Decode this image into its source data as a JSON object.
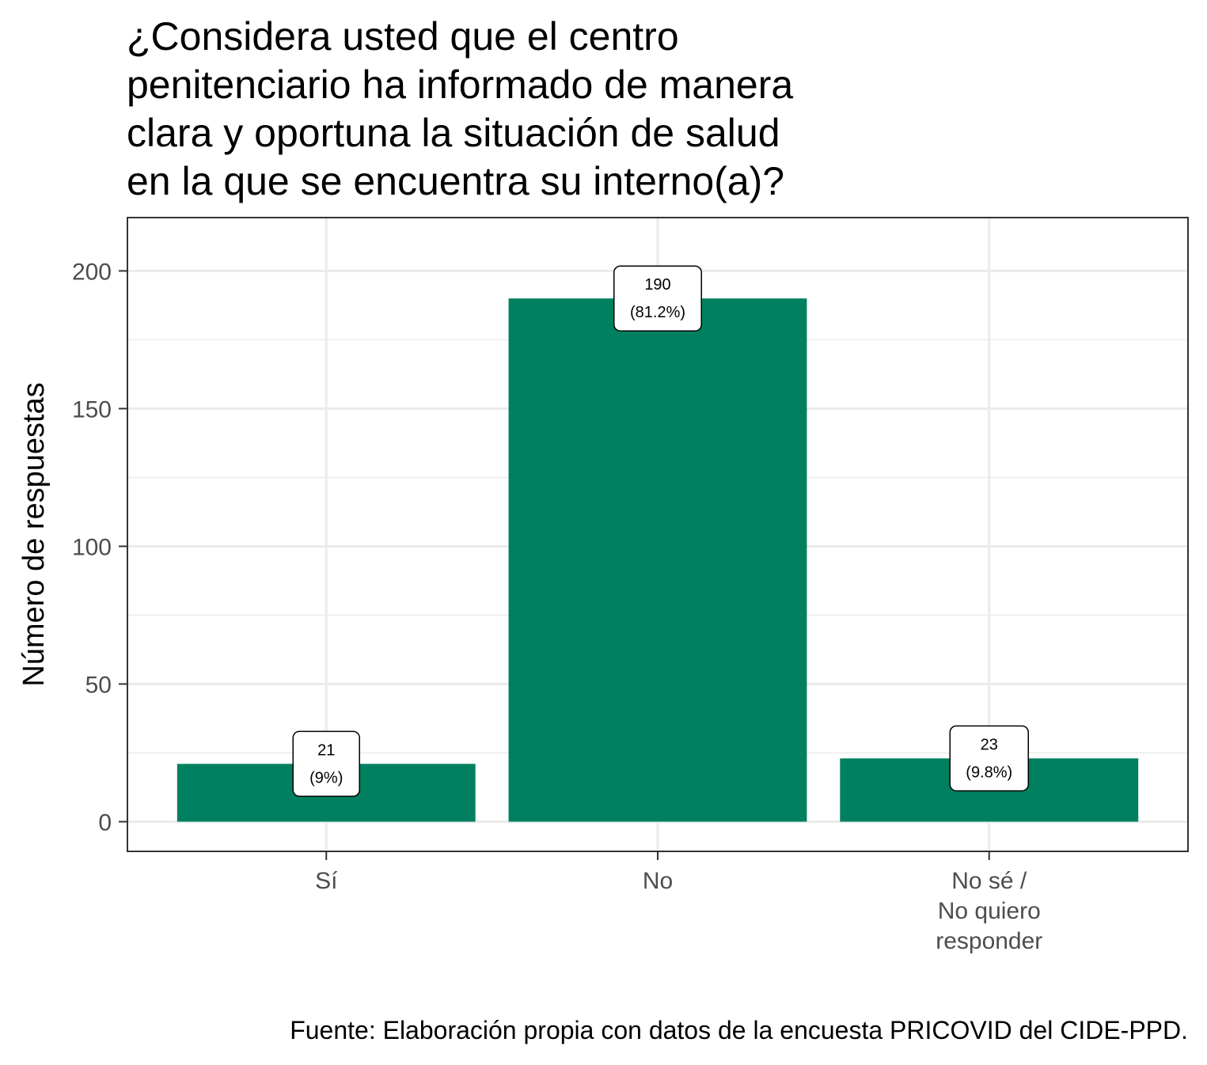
{
  "chart_data": {
    "type": "bar",
    "title_lines": [
      "¿Considera usted que el centro",
      "penitenciario ha informado de manera",
      "clara y oportuna la situación de salud",
      "en la que se encuentra su interno(a)?"
    ],
    "categories": [
      [
        "Sí"
      ],
      [
        "No"
      ],
      [
        "No sé /",
        "No quiero",
        "responder"
      ]
    ],
    "values": [
      21,
      190,
      23
    ],
    "data_labels": [
      [
        "21",
        "(9%)"
      ],
      [
        "190",
        "(81.2%)"
      ],
      [
        "23",
        "(9.8%)"
      ]
    ],
    "ylabel": "Número de respuestas",
    "xlabel": "",
    "ylim": [
      -10,
      220
    ],
    "yticks": [
      0,
      50,
      100,
      150,
      200
    ],
    "yticks_minor": [
      25,
      75,
      125,
      175
    ],
    "grid": true,
    "bar_color": "#008060",
    "caption": "Fuente: Elaboración propia con datos de la encuesta PRICOVID del CIDE-PPD."
  }
}
